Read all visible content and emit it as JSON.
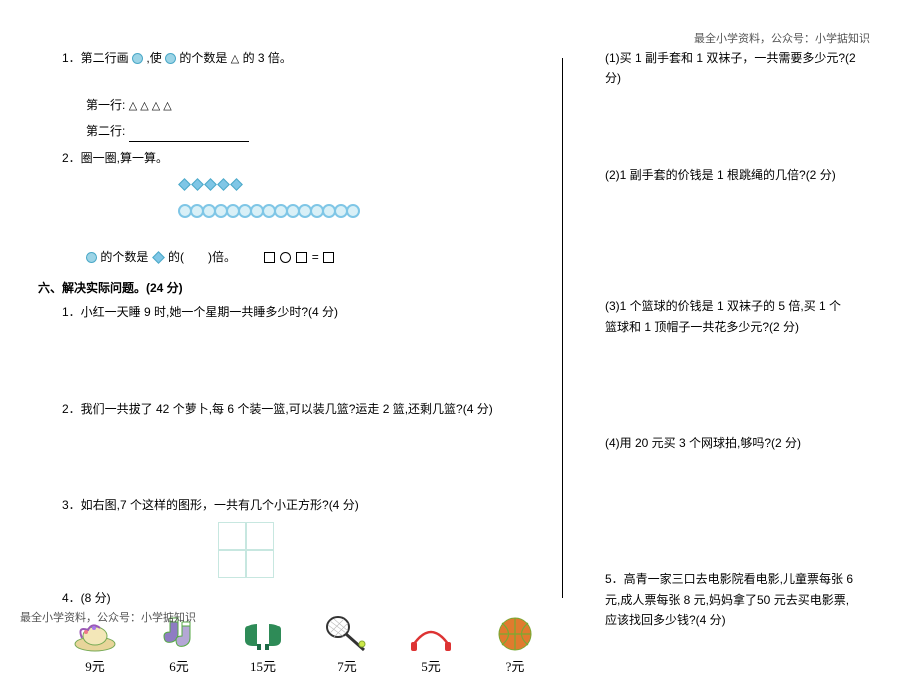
{
  "header": {
    "note": "最全小学资料，公众号：小学掂知识"
  },
  "footer": {
    "note": "最全小学资料，公众号：小学掂知识"
  },
  "left": {
    "q1": {
      "text_a": "1．第二行画",
      "text_b": ",使",
      "text_c": "的个数是",
      "text_d": "的 3 倍。",
      "row1_label": "第一行:",
      "row1_triangles": "△ △ △ △",
      "row2_label": "第二行:"
    },
    "q2": {
      "label": "2．圈一圈,算一算。",
      "diamond_count": 5,
      "ring_count": 15,
      "sentence_a": "的个数是",
      "sentence_b": "的(　　)倍。"
    },
    "section6": {
      "heading": "六、解决实际问题。(24 分)",
      "p1": "1．小红一天睡 9 时,她一个星期一共睡多少时?(4 分)",
      "p2": "2．我们一共拔了 42 个萝卜,每 6 个装一篮,可以装几篮?运走 2 篮,还剩几篮?(4 分)",
      "p3": "3．如右图,7 个这样的图形，一共有几个小正方形?(4 分)",
      "p4": "4．(8 分)",
      "items": [
        {
          "name": "hat",
          "price": "9元",
          "svg": "hat"
        },
        {
          "name": "socks",
          "price": "6元",
          "svg": "socks"
        },
        {
          "name": "gloves",
          "price": "15元",
          "svg": "gloves"
        },
        {
          "name": "racket",
          "price": "7元",
          "svg": "racket"
        },
        {
          "name": "rope",
          "price": "5元",
          "svg": "rope"
        },
        {
          "name": "ball",
          "price": "?元",
          "svg": "ball"
        }
      ]
    }
  },
  "right": {
    "sub": [
      "(1)买 1 副手套和 1 双袜子，一共需要多少元?(2 分)",
      "(2)1 副手套的价钱是 1 根跳绳的几倍?(2 分)",
      "(3)1 个篮球的价钱是 1 双袜子的 5 倍,买 1 个篮球和 1 顶帽子一共花多少元?(2 分)",
      "(4)用 20 元买 3 个网球拍,够吗?(2 分)"
    ],
    "p5": "5．高青一家三口去电影院看电影,儿童票每张 6 元,成人票每张 8 元,妈妈拿了50 元去买电影票,应该找回多少钱?(4 分)"
  },
  "style": {
    "body_font_size": 12,
    "accent_blue": "#7fc6e6",
    "grid_border": "#c7e7e0",
    "text_color": "#000000",
    "bg": "#ffffff"
  }
}
